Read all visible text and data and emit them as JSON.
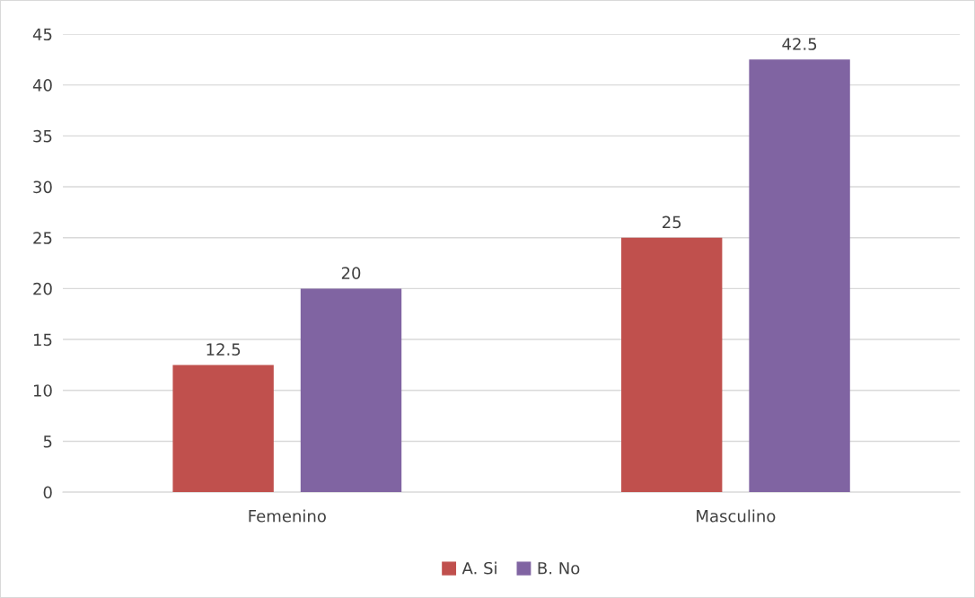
{
  "chart_data": {
    "type": "bar",
    "categories": [
      "Femenino",
      "Masculino"
    ],
    "series": [
      {
        "name": "A. Si",
        "color": "#c0504d",
        "values": [
          12.5,
          25
        ]
      },
      {
        "name": "B. No",
        "color": "#8064a2",
        "values": [
          20,
          42.5
        ]
      }
    ],
    "ylim": [
      0,
      45
    ],
    "yticks": [
      0,
      5,
      10,
      15,
      20,
      25,
      30,
      35,
      40,
      45
    ],
    "grid": "y",
    "legend": "bottom",
    "data_labels": true
  }
}
